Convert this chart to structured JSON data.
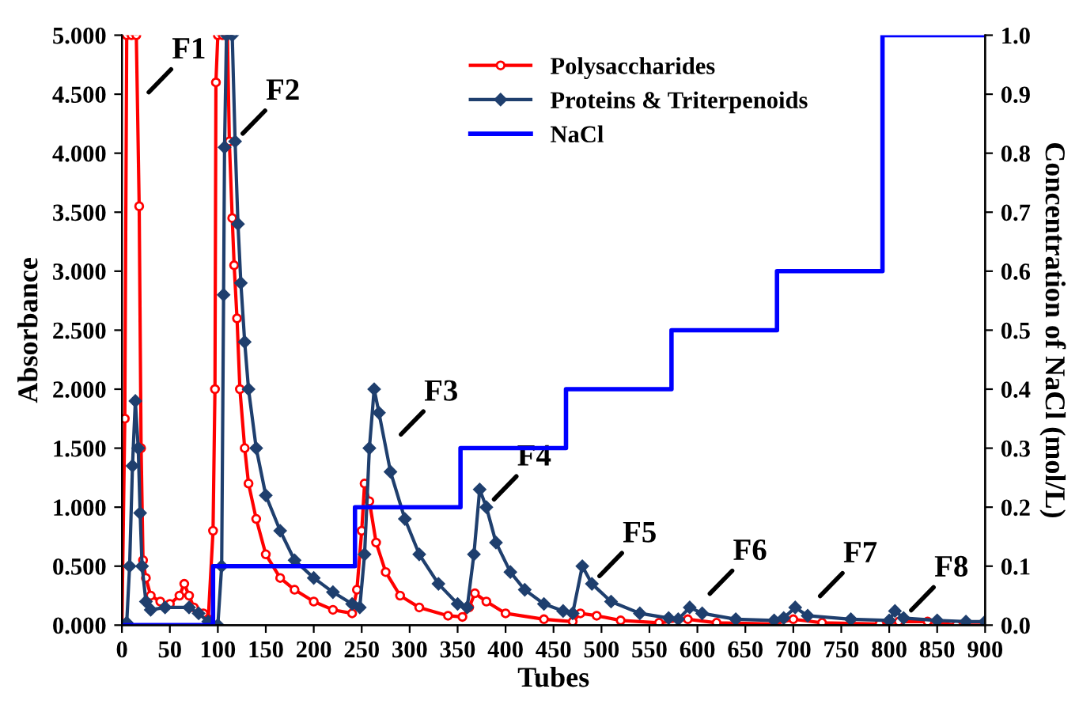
{
  "chart_data": {
    "type": "line",
    "xlabel": "Tubes",
    "ylabel": "Absorbance",
    "y2label": "Concentration of NaCl (mol/L)",
    "xlim": [
      0,
      900
    ],
    "xticks": [
      0,
      50,
      100,
      150,
      200,
      250,
      300,
      350,
      400,
      450,
      500,
      550,
      600,
      650,
      700,
      750,
      800,
      850,
      900
    ],
    "ylim": [
      0,
      5
    ],
    "yticks": [
      {
        "value": 0,
        "label": "0.000"
      },
      {
        "value": 0.5,
        "label": "0.500"
      },
      {
        "value": 1,
        "label": "1.000"
      },
      {
        "value": 1.5,
        "label": "1.500"
      },
      {
        "value": 2,
        "label": "2.000"
      },
      {
        "value": 2.5,
        "label": "2.500"
      },
      {
        "value": 3,
        "label": "3.000"
      },
      {
        "value": 3.5,
        "label": "3.500"
      },
      {
        "value": 4,
        "label": "4.000"
      },
      {
        "value": 4.5,
        "label": "4.500"
      },
      {
        "value": 5,
        "label": "5.000"
      }
    ],
    "y2lim": [
      0,
      1
    ],
    "y2ticks": [
      {
        "value": 0,
        "label": "0.0"
      },
      {
        "value": 0.1,
        "label": "0.1"
      },
      {
        "value": 0.2,
        "label": "0.2"
      },
      {
        "value": 0.3,
        "label": "0.3"
      },
      {
        "value": 0.4,
        "label": "0.4"
      },
      {
        "value": 0.5,
        "label": "0.5"
      },
      {
        "value": 0.6,
        "label": "0.6"
      },
      {
        "value": 0.7,
        "label": "0.7"
      },
      {
        "value": 0.8,
        "label": "0.8"
      },
      {
        "value": 0.9,
        "label": "0.9"
      },
      {
        "value": 1,
        "label": "1.0"
      }
    ],
    "grid": false,
    "legend": "top right",
    "series": [
      {
        "name": "Polysaccharides",
        "color": "#ff0000",
        "marker": "circle",
        "x": [
          0,
          3,
          5,
          10,
          15,
          18,
          20,
          22,
          25,
          30,
          40,
          50,
          60,
          65,
          70,
          75,
          85,
          90,
          95,
          97,
          98,
          100,
          105,
          110,
          112,
          115,
          117,
          120,
          123,
          128,
          132,
          140,
          150,
          165,
          180,
          200,
          220,
          240,
          245,
          250,
          253,
          258,
          265,
          275,
          290,
          310,
          340,
          355,
          362,
          368,
          380,
          400,
          440,
          470,
          478,
          495,
          520,
          560,
          590,
          620,
          680,
          700,
          730,
          790,
          810,
          840,
          870,
          900
        ],
        "values": [
          0,
          1.75,
          5,
          5,
          5,
          3.55,
          1.5,
          0.55,
          0.4,
          0.25,
          0.2,
          0.18,
          0.25,
          0.35,
          0.25,
          0.15,
          0.1,
          0.05,
          0.8,
          2.0,
          4.6,
          5,
          5,
          5,
          4.1,
          3.45,
          3.05,
          2.6,
          2.0,
          1.5,
          1.2,
          0.9,
          0.6,
          0.4,
          0.3,
          0.2,
          0.13,
          0.1,
          0.3,
          0.8,
          1.2,
          1.05,
          0.7,
          0.45,
          0.25,
          0.15,
          0.08,
          0.07,
          0.15,
          0.27,
          0.2,
          0.1,
          0.05,
          0.03,
          0.1,
          0.08,
          0.04,
          0.02,
          0.05,
          0.02,
          0.01,
          0.05,
          0.02,
          0.01,
          0.03,
          0.03,
          0,
          0
        ]
      },
      {
        "name": "Proteins & Triterpenoids",
        "color": "#1f3f6e",
        "marker": "diamond",
        "x": [
          0,
          5,
          8,
          11,
          14,
          17,
          19,
          21,
          25,
          30,
          45,
          70,
          80,
          90,
          100,
          104,
          106,
          107,
          109,
          115,
          118,
          121,
          124,
          128,
          132,
          140,
          150,
          165,
          180,
          200,
          220,
          240,
          248,
          253,
          258,
          263,
          268,
          280,
          295,
          310,
          330,
          350,
          360,
          367,
          373,
          380,
          390,
          405,
          420,
          440,
          460,
          470,
          480,
          490,
          510,
          540,
          570,
          580,
          592,
          605,
          640,
          680,
          690,
          702,
          715,
          760,
          800,
          806,
          815,
          850,
          880,
          900
        ],
        "values": [
          0,
          0.02,
          0.5,
          1.35,
          1.9,
          1.5,
          0.95,
          0.5,
          0.2,
          0.13,
          0.15,
          0.15,
          0.1,
          0.03,
          0,
          0.5,
          2.8,
          4.05,
          5,
          5,
          4.1,
          3.4,
          2.9,
          2.4,
          2.0,
          1.5,
          1.1,
          0.8,
          0.55,
          0.4,
          0.28,
          0.18,
          0.15,
          0.6,
          1.5,
          2.0,
          1.8,
          1.3,
          0.9,
          0.6,
          0.35,
          0.18,
          0.15,
          0.6,
          1.15,
          1.0,
          0.7,
          0.45,
          0.3,
          0.18,
          0.12,
          0.1,
          0.5,
          0.35,
          0.2,
          0.1,
          0.06,
          0.05,
          0.15,
          0.1,
          0.05,
          0.04,
          0.06,
          0.15,
          0.08,
          0.05,
          0.04,
          0.12,
          0.06,
          0.04,
          0.03,
          0.03
        ]
      },
      {
        "name": "NaCl",
        "color": "#0000ff",
        "type": "step",
        "axis": "y2",
        "marker": "none",
        "x": [
          0,
          95,
          243,
          353,
          463,
          573,
          683,
          793,
          900
        ],
        "values": [
          0,
          0.1,
          0.2,
          0.3,
          0.4,
          0.5,
          0.6,
          1.0,
          1.0
        ]
      }
    ],
    "annotations": [
      {
        "text": "F1",
        "x": 20,
        "y": 4.45
      },
      {
        "text": "F2",
        "x": 118,
        "y": 4.1
      },
      {
        "text": "F3",
        "x": 283,
        "y": 1.55
      },
      {
        "text": "F4",
        "x": 380,
        "y": 1.0
      },
      {
        "text": "F5",
        "x": 490,
        "y": 0.35
      },
      {
        "text": "F6",
        "x": 605,
        "y": 0.2
      },
      {
        "text": "F7",
        "x": 720,
        "y": 0.18
      },
      {
        "text": "F8",
        "x": 815,
        "y": 0.06
      }
    ]
  }
}
